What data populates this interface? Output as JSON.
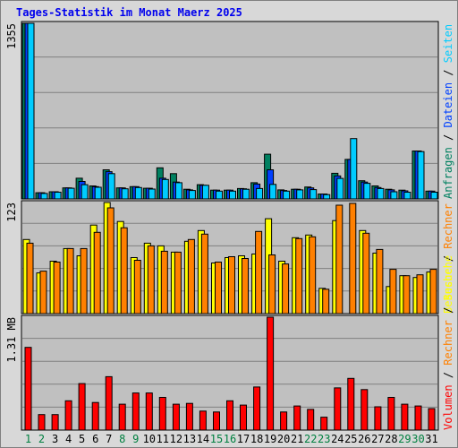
{
  "title": "Tages-Statistik im Monat Maerz 2025",
  "colors": {
    "frame_bg": "#d8d8d8",
    "plot_bg": "#c0c0c0",
    "grid": "#808080",
    "title": "#0000ee",
    "day_weekday": "#000000",
    "day_weekend": "#008040",
    "anfragen": "#008060",
    "dateien": "#0040ff",
    "seiten": "#00ccff",
    "besuche": "#ffff00",
    "rechner": "#ff8000",
    "volumen": "#ff0000"
  },
  "chart_data": {
    "type": "bar",
    "categories": [
      "1",
      "2",
      "3",
      "4",
      "5",
      "6",
      "7",
      "8",
      "9",
      "10",
      "11",
      "12",
      "13",
      "14",
      "15",
      "16",
      "17",
      "18",
      "19",
      "20",
      "21",
      "22",
      "23",
      "24",
      "25",
      "26",
      "27",
      "28",
      "29",
      "30",
      "31"
    ],
    "weekend_days": [
      "1",
      "2",
      "8",
      "9",
      "15",
      "16",
      "22",
      "23",
      "29",
      "30"
    ],
    "panels": [
      {
        "id": "hits",
        "max_label": "1355",
        "ymax": 1355,
        "right_labels": [
          {
            "text": "Anfragen",
            "color": "#008060"
          },
          {
            "text": " / ",
            "color": "#000000"
          },
          {
            "text": "Dateien",
            "color": "#0040ff"
          },
          {
            "text": " / ",
            "color": "#000000"
          },
          {
            "text": "Seiten",
            "color": "#00ccff"
          }
        ],
        "series": [
          {
            "name": "Anfragen",
            "color": "#008060",
            "values": [
              1355,
              48,
              55,
              85,
              160,
              100,
              225,
              85,
              95,
              82,
              240,
              195,
              75,
              110,
              68,
              68,
              80,
              125,
              345,
              70,
              75,
              92,
              38,
              198,
              305,
              140,
              100,
              75,
              68,
              370,
              60
            ]
          },
          {
            "name": "Dateien",
            "color": "#0040ff",
            "values": [
              1355,
              48,
              55,
              85,
              135,
              95,
              210,
              85,
              95,
              82,
              160,
              130,
              70,
              105,
              68,
              68,
              78,
              115,
              225,
              65,
              75,
              85,
              38,
              178,
              305,
              130,
              88,
              70,
              62,
              370,
              60
            ]
          },
          {
            "name": "Seiten",
            "color": "#00ccff",
            "values": [
              1355,
              42,
              52,
              82,
              110,
              90,
              195,
              78,
              88,
              76,
              150,
              125,
              65,
              105,
              60,
              60,
              75,
              80,
              112,
              60,
              70,
              72,
              33,
              158,
              465,
              120,
              80,
              55,
              52,
              365,
              52
            ]
          }
        ]
      },
      {
        "id": "visits",
        "max_label": "123",
        "ymax": 123,
        "right_labels": [
          {
            "text": "Besuche",
            "color": "#ffff00"
          },
          {
            "text": " / ",
            "color": "#000000"
          },
          {
            "text": "Rechner",
            "color": "#ff8000"
          }
        ],
        "series": [
          {
            "name": "Besuche",
            "color": "#ffff00",
            "values": [
              82,
              45,
              58,
              72,
              64,
              98,
              123,
              102,
              62,
              78,
              75,
              68,
              80,
              92,
              56,
              62,
              64,
              66,
              105,
              58,
              84,
              87,
              28,
              103,
              0,
              92,
              67,
              30,
              42,
              40,
              46
            ]
          },
          {
            "name": "Rechner",
            "color": "#ff8000",
            "values": [
              78,
              47,
              57,
              72,
              72,
              90,
              117,
              95,
              59,
              75,
              69,
              68,
              82,
              88,
              57,
              63,
              61,
              91,
              65,
              55,
              83,
              85,
              27,
              120,
              122,
              89,
              71,
              49,
              42,
              43,
              49
            ]
          }
        ]
      },
      {
        "id": "volume",
        "max_label": "1.31 MB",
        "ymax": 1.31,
        "right_labels": [
          {
            "text": "Volumen",
            "color": "#ff0000"
          },
          {
            "text": " / ",
            "color": "#000000"
          },
          {
            "text": "Rechner",
            "color": "#ff8000"
          },
          {
            "text": " / ",
            "color": "#000000"
          },
          {
            "text": "Besuche",
            "color": "#ffff00"
          }
        ],
        "series": [
          {
            "name": "Volumen",
            "color": "#ff0000",
            "values": [
              0.96,
              0.18,
              0.18,
              0.34,
              0.54,
              0.32,
              0.62,
              0.3,
              0.43,
              0.43,
              0.38,
              0.3,
              0.31,
              0.22,
              0.21,
              0.34,
              0.29,
              0.5,
              1.31,
              0.21,
              0.28,
              0.24,
              0.15,
              0.49,
              0.6,
              0.47,
              0.27,
              0.38,
              0.3,
              0.28,
              0.25
            ]
          }
        ]
      }
    ]
  }
}
